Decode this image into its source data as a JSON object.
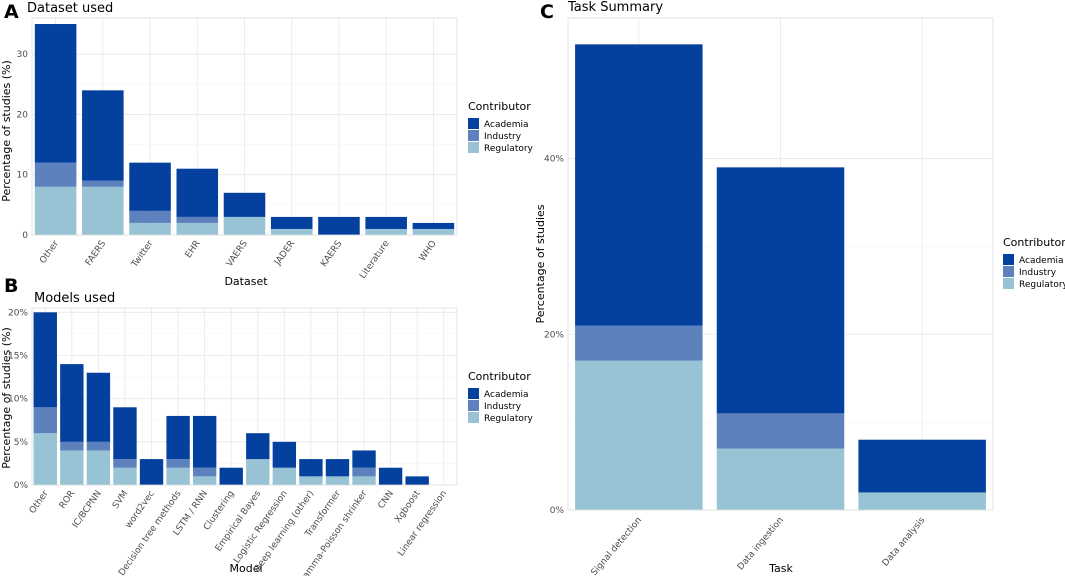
{
  "colors": {
    "Academia": "#04409e",
    "Industry": "#5d81bd",
    "Regulatory": "#97c3d5"
  },
  "legend": {
    "title": "Contributor",
    "entries": [
      "Academia",
      "Industry",
      "Regulatory"
    ]
  },
  "chart_data": [
    {
      "panel": "A",
      "type": "bar",
      "stacked": true,
      "title": "Dataset used",
      "xlabel": "Dataset",
      "ylabel": "Percentage of studies (%)",
      "ylim": [
        0,
        36
      ],
      "yticks": [
        0,
        10,
        20,
        30
      ],
      "ytick_labels": [
        "0",
        "10",
        "20",
        "30"
      ],
      "categories": [
        "Other",
        "FAERS",
        "Twitter",
        "EHR",
        "VAERS",
        "JADER",
        "KAERS",
        "Literature",
        "WHO"
      ],
      "series": [
        {
          "name": "Regulatory",
          "values": [
            8,
            8,
            2,
            2,
            3,
            1,
            0,
            1,
            1
          ]
        },
        {
          "name": "Industry",
          "values": [
            4,
            1,
            2,
            1,
            0,
            0,
            0,
            0,
            0
          ]
        },
        {
          "name": "Academia",
          "values": [
            23,
            15,
            8,
            8,
            4,
            2,
            3,
            2,
            1
          ]
        }
      ]
    },
    {
      "panel": "B",
      "type": "bar",
      "stacked": true,
      "title": "Models used",
      "xlabel": "Model",
      "ylabel": "Percentage of studies (%)",
      "ylim": [
        0,
        20.5
      ],
      "yticks": [
        0,
        5,
        10,
        15,
        20
      ],
      "ytick_labels": [
        "0%",
        "5%",
        "10%",
        "15%",
        "20%"
      ],
      "categories": [
        "Other",
        "ROR",
        "IC/BCPNN",
        "SVM",
        "word2vec",
        "Decision tree methods",
        "LSTM / RNN",
        "Clustering",
        "Empirical Bayes",
        "Logistic Regression",
        "Deep learning (other)",
        "Transformer",
        "Gamma-Poisson shrinker",
        "CNN",
        "Xgboost",
        "Linear regression"
      ],
      "series": [
        {
          "name": "Regulatory",
          "values": [
            6,
            4,
            4,
            2,
            0,
            2,
            1,
            0,
            3,
            2,
            1,
            1,
            1,
            0,
            0,
            0
          ]
        },
        {
          "name": "Industry",
          "values": [
            3,
            1,
            1,
            1,
            0,
            1,
            1,
            0,
            0,
            0,
            0,
            0,
            1,
            0,
            0,
            0
          ]
        },
        {
          "name": "Academia",
          "values": [
            11,
            9,
            8,
            6,
            3,
            5,
            6,
            2,
            3,
            3,
            2,
            2,
            2,
            2,
            1,
            0
          ]
        }
      ]
    },
    {
      "panel": "C",
      "type": "bar",
      "stacked": true,
      "title": "Task Summary",
      "xlabel": "Task",
      "ylabel": "Percentage of studies",
      "ylim": [
        0,
        56
      ],
      "yticks": [
        0,
        20,
        40
      ],
      "ytick_labels": [
        "0%",
        "20%",
        "40%"
      ],
      "categories": [
        "Signal detection",
        "Data ingestion",
        "Data analysis"
      ],
      "series": [
        {
          "name": "Regulatory",
          "values": [
            17,
            7,
            2
          ]
        },
        {
          "name": "Industry",
          "values": [
            4,
            4,
            0
          ]
        },
        {
          "name": "Academia",
          "values": [
            32,
            28,
            6
          ]
        }
      ]
    }
  ]
}
